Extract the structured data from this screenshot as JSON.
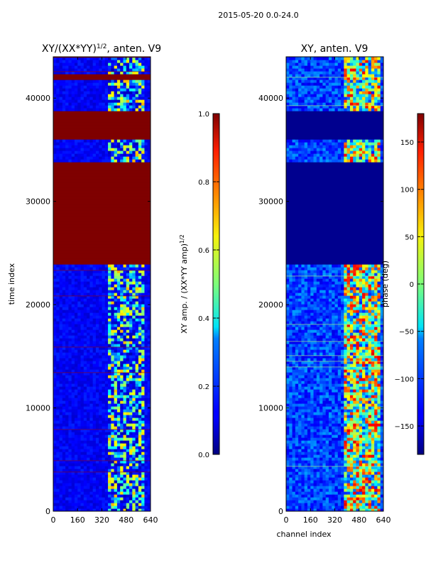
{
  "figure": {
    "suptitle": "2015-05-20 0.0-24.0",
    "colors": {
      "background": "#ffffff",
      "axis": "#000000"
    }
  },
  "chart_data": [
    {
      "type": "heatmap",
      "title": "XY/(XX*YY)^(1/2), anten. V9",
      "title_parts": {
        "base": "XY/(XX*YY)",
        "exp": "1/2",
        "rest": ", anten. V9"
      },
      "xlabel": "",
      "ylabel": "time index",
      "xlim": [
        0,
        640
      ],
      "ylim": [
        0,
        44000
      ],
      "xticks": [
        0,
        160,
        320,
        480,
        640
      ],
      "yticks": [
        0,
        10000,
        20000,
        30000,
        40000
      ],
      "colormap": "jet",
      "colorbar": {
        "label": "XY amp. / (XX*YY amp)",
        "label_exp": "1/2",
        "range": [
          0.0,
          1.0
        ],
        "ticks": [
          "0.0",
          "0.2",
          "0.4",
          "0.6",
          "0.8",
          "1.0"
        ]
      },
      "saturated_time_blocks": [
        [
          24000,
          33700
        ],
        [
          36100,
          38800
        ],
        [
          41900,
          42400
        ]
      ]
    },
    {
      "type": "heatmap",
      "title": "XY, anten. V9",
      "xlabel": "channel index",
      "ylabel": "",
      "xlim": [
        0,
        640
      ],
      "ylim": [
        0,
        44000
      ],
      "xticks": [
        0,
        160,
        320,
        480,
        640
      ],
      "yticks": [
        0,
        10000,
        20000,
        30000,
        40000
      ],
      "colormap": "jet",
      "colorbar": {
        "label": "phase (deg)",
        "range": [
          -180,
          180
        ],
        "ticks": [
          "150",
          "100",
          "50",
          "0",
          "−50",
          "−100",
          "−150"
        ]
      },
      "low_value_time_blocks": [
        [
          24000,
          33700
        ],
        [
          36100,
          38800
        ]
      ]
    }
  ]
}
